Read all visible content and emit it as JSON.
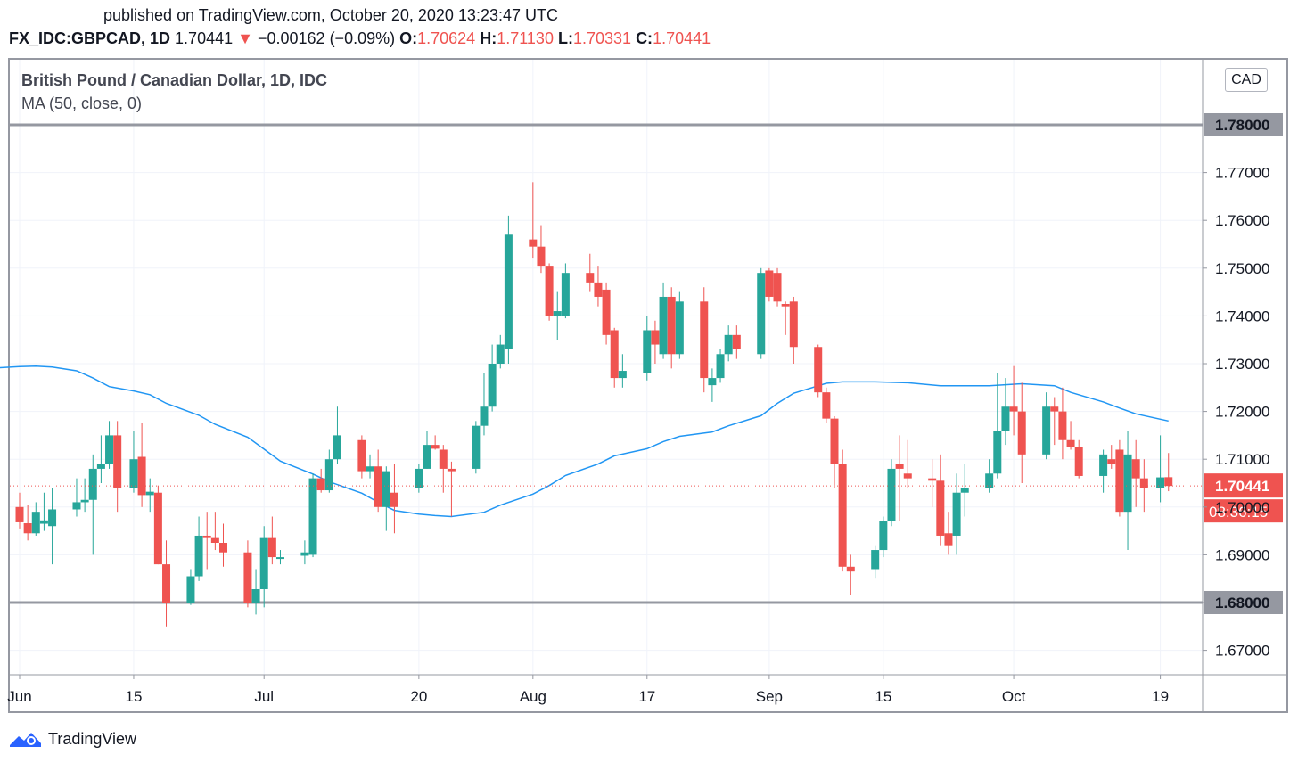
{
  "header": {
    "published": "published on TradingView.com, October 20, 2020 13:23:47 UTC",
    "symbol": "FX_IDC:GBPCAD, 1D",
    "last": "1.70441",
    "change": "−0.00162 (−0.09%)",
    "o_label": "O:",
    "o": "1.70624",
    "h_label": "H:",
    "h": "1.71130",
    "l_label": "L:",
    "l": "1.70331",
    "c_label": "C:",
    "c": "1.70441"
  },
  "legend": {
    "title": "British Pound / Canadian Dollar, 1D, IDC",
    "ma": "MA (50, close, 0)"
  },
  "currency": "CAD",
  "footer": {
    "brand": "TradingView"
  },
  "colors": {
    "up": "#26a69a",
    "down": "#ef5350",
    "ma": "#2196f3",
    "level": "#9598a1",
    "grid": "#f0f3fa",
    "text": "#131722"
  },
  "chart_data": {
    "type": "candlestick",
    "ylim": [
      1.665,
      1.785
    ],
    "y_ticks": [
      "1.67000",
      "1.68000",
      "1.69000",
      "1.70000",
      "1.71000",
      "1.72000",
      "1.73000",
      "1.74000",
      "1.75000",
      "1.76000",
      "1.77000"
    ],
    "x_ticks": [
      {
        "label": "Jun",
        "date": "2020-06-01"
      },
      {
        "label": "15",
        "date": "2020-06-15"
      },
      {
        "label": "Jul",
        "date": "2020-07-01"
      },
      {
        "label": "20",
        "date": "2020-07-20"
      },
      {
        "label": "Aug",
        "date": "2020-08-03"
      },
      {
        "label": "17",
        "date": "2020-08-17"
      },
      {
        "label": "Sep",
        "date": "2020-09-01"
      },
      {
        "label": "15",
        "date": "2020-09-15"
      },
      {
        "label": "Oct",
        "date": "2020-10-01"
      },
      {
        "label": "19",
        "date": "2020-10-19"
      }
    ],
    "horizontal_levels": [
      {
        "value": 1.78,
        "label": "1.78000"
      },
      {
        "value": 1.68,
        "label": "1.68000"
      }
    ],
    "last_price": {
      "value": 1.70441,
      "label": "1.70441",
      "countdown": "08:36:15"
    },
    "candles": [
      {
        "date": "2020-06-01",
        "o": 1.7,
        "h": 1.703,
        "l": 1.6955,
        "c": 1.6968
      },
      {
        "date": "2020-06-02",
        "o": 1.6966,
        "h": 1.7005,
        "l": 1.693,
        "c": 1.6945
      },
      {
        "date": "2020-06-03",
        "o": 1.6945,
        "h": 1.701,
        "l": 1.694,
        "c": 1.699
      },
      {
        "date": "2020-06-04",
        "o": 1.6965,
        "h": 1.703,
        "l": 1.695,
        "c": 1.6972
      },
      {
        "date": "2020-06-05",
        "o": 1.696,
        "h": 1.704,
        "l": 1.688,
        "c": 1.6995
      },
      {
        "date": "2020-06-08",
        "o": 1.6995,
        "h": 1.706,
        "l": 1.698,
        "c": 1.701
      },
      {
        "date": "2020-06-09",
        "o": 1.701,
        "h": 1.706,
        "l": 1.699,
        "c": 1.7015
      },
      {
        "date": "2020-06-10",
        "o": 1.7015,
        "h": 1.711,
        "l": 1.69,
        "c": 1.708
      },
      {
        "date": "2020-06-11",
        "o": 1.708,
        "h": 1.715,
        "l": 1.705,
        "c": 1.709
      },
      {
        "date": "2020-06-12",
        "o": 1.709,
        "h": 1.718,
        "l": 1.708,
        "c": 1.715
      },
      {
        "date": "2020-06-13",
        "o": 1.715,
        "h": 1.718,
        "l": 1.699,
        "c": 1.704
      },
      {
        "date": "2020-06-15",
        "o": 1.704,
        "h": 1.716,
        "l": 1.703,
        "c": 1.71
      },
      {
        "date": "2020-06-16",
        "o": 1.7105,
        "h": 1.7175,
        "l": 1.7,
        "c": 1.7025
      },
      {
        "date": "2020-06-17",
        "o": 1.7025,
        "h": 1.706,
        "l": 1.699,
        "c": 1.7032
      },
      {
        "date": "2020-06-18",
        "o": 1.703,
        "h": 1.7045,
        "l": 1.688,
        "c": 1.688
      },
      {
        "date": "2020-06-19",
        "o": 1.688,
        "h": 1.693,
        "l": 1.675,
        "c": 1.68
      },
      {
        "date": "2020-06-22",
        "o": 1.68,
        "h": 1.687,
        "l": 1.6795,
        "c": 1.6855
      },
      {
        "date": "2020-06-23",
        "o": 1.6855,
        "h": 1.698,
        "l": 1.6845,
        "c": 1.694
      },
      {
        "date": "2020-06-24",
        "o": 1.694,
        "h": 1.699,
        "l": 1.687,
        "c": 1.6935
      },
      {
        "date": "2020-06-25",
        "o": 1.6935,
        "h": 1.699,
        "l": 1.691,
        "c": 1.6925
      },
      {
        "date": "2020-06-26",
        "o": 1.6925,
        "h": 1.6965,
        "l": 1.6875,
        "c": 1.6905
      },
      {
        "date": "2020-06-29",
        "o": 1.6905,
        "h": 1.693,
        "l": 1.679,
        "c": 1.68
      },
      {
        "date": "2020-06-30",
        "o": 1.68,
        "h": 1.687,
        "l": 1.6775,
        "c": 1.6828
      },
      {
        "date": "2020-07-01",
        "o": 1.6828,
        "h": 1.696,
        "l": 1.679,
        "c": 1.6935
      },
      {
        "date": "2020-07-02",
        "o": 1.6935,
        "h": 1.698,
        "l": 1.688,
        "c": 1.6895
      },
      {
        "date": "2020-07-03",
        "o": 1.6895,
        "h": 1.691,
        "l": 1.688,
        "c": 1.6895
      },
      {
        "date": "2020-07-06",
        "o": 1.6898,
        "h": 1.693,
        "l": 1.688,
        "c": 1.6905
      },
      {
        "date": "2020-07-07",
        "o": 1.69,
        "h": 1.707,
        "l": 1.6895,
        "c": 1.706
      },
      {
        "date": "2020-07-08",
        "o": 1.706,
        "h": 1.708,
        "l": 1.703,
        "c": 1.7035
      },
      {
        "date": "2020-07-09",
        "o": 1.7035,
        "h": 1.712,
        "l": 1.703,
        "c": 1.71
      },
      {
        "date": "2020-07-10",
        "o": 1.71,
        "h": 1.721,
        "l": 1.709,
        "c": 1.715
      },
      {
        "date": "2020-07-13",
        "o": 1.714,
        "h": 1.715,
        "l": 1.706,
        "c": 1.7075
      },
      {
        "date": "2020-07-14",
        "o": 1.7075,
        "h": 1.711,
        "l": 1.706,
        "c": 1.7085
      },
      {
        "date": "2020-07-15",
        "o": 1.7085,
        "h": 1.712,
        "l": 1.699,
        "c": 1.7
      },
      {
        "date": "2020-07-16",
        "o": 1.7,
        "h": 1.7085,
        "l": 1.695,
        "c": 1.7075
      },
      {
        "date": "2020-07-17",
        "o": 1.703,
        "h": 1.709,
        "l": 1.6945,
        "c": 1.7
      },
      {
        "date": "2020-07-20",
        "o": 1.704,
        "h": 1.709,
        "l": 1.703,
        "c": 1.708
      },
      {
        "date": "2020-07-21",
        "o": 1.708,
        "h": 1.716,
        "l": 1.708,
        "c": 1.713
      },
      {
        "date": "2020-07-22",
        "o": 1.713,
        "h": 1.715,
        "l": 1.712,
        "c": 1.7122
      },
      {
        "date": "2020-07-23",
        "o": 1.712,
        "h": 1.713,
        "l": 1.703,
        "c": 1.708
      },
      {
        "date": "2020-07-24",
        "o": 1.708,
        "h": 1.7095,
        "l": 1.698,
        "c": 1.7075
      },
      {
        "date": "2020-07-27",
        "o": 1.708,
        "h": 1.718,
        "l": 1.707,
        "c": 1.717
      },
      {
        "date": "2020-07-28",
        "o": 1.717,
        "h": 1.728,
        "l": 1.715,
        "c": 1.721
      },
      {
        "date": "2020-07-29",
        "o": 1.721,
        "h": 1.734,
        "l": 1.72,
        "c": 1.73
      },
      {
        "date": "2020-07-30",
        "o": 1.73,
        "h": 1.736,
        "l": 1.729,
        "c": 1.734
      },
      {
        "date": "2020-07-31",
        "o": 1.733,
        "h": 1.761,
        "l": 1.73,
        "c": 1.757
      },
      {
        "date": "2020-08-03",
        "o": 1.756,
        "h": 1.768,
        "l": 1.752,
        "c": 1.7545
      },
      {
        "date": "2020-08-04",
        "o": 1.7545,
        "h": 1.759,
        "l": 1.749,
        "c": 1.7505
      },
      {
        "date": "2020-08-05",
        "o": 1.7505,
        "h": 1.751,
        "l": 1.739,
        "c": 1.74
      },
      {
        "date": "2020-08-06",
        "o": 1.74,
        "h": 1.745,
        "l": 1.735,
        "c": 1.741
      },
      {
        "date": "2020-08-07",
        "o": 1.74,
        "h": 1.751,
        "l": 1.7395,
        "c": 1.749
      },
      {
        "date": "2020-08-10",
        "o": 1.749,
        "h": 1.753,
        "l": 1.745,
        "c": 1.747
      },
      {
        "date": "2020-08-11",
        "o": 1.747,
        "h": 1.7505,
        "l": 1.742,
        "c": 1.744
      },
      {
        "date": "2020-08-12",
        "o": 1.7455,
        "h": 1.747,
        "l": 1.734,
        "c": 1.736
      },
      {
        "date": "2020-08-13",
        "o": 1.737,
        "h": 1.7375,
        "l": 1.725,
        "c": 1.727
      },
      {
        "date": "2020-08-14",
        "o": 1.727,
        "h": 1.732,
        "l": 1.725,
        "c": 1.7285
      },
      {
        "date": "2020-08-17",
        "o": 1.728,
        "h": 1.74,
        "l": 1.7265,
        "c": 1.737
      },
      {
        "date": "2020-08-18",
        "o": 1.737,
        "h": 1.739,
        "l": 1.73,
        "c": 1.734
      },
      {
        "date": "2020-08-19",
        "o": 1.732,
        "h": 1.747,
        "l": 1.731,
        "c": 1.744
      },
      {
        "date": "2020-08-20",
        "o": 1.744,
        "h": 1.746,
        "l": 1.729,
        "c": 1.732
      },
      {
        "date": "2020-08-21",
        "o": 1.732,
        "h": 1.745,
        "l": 1.731,
        "c": 1.743
      },
      {
        "date": "2020-08-24",
        "o": 1.743,
        "h": 1.746,
        "l": 1.724,
        "c": 1.727
      },
      {
        "date": "2020-08-25",
        "o": 1.7255,
        "h": 1.729,
        "l": 1.722,
        "c": 1.727
      },
      {
        "date": "2020-08-26",
        "o": 1.727,
        "h": 1.733,
        "l": 1.726,
        "c": 1.732
      },
      {
        "date": "2020-08-27",
        "o": 1.732,
        "h": 1.738,
        "l": 1.7305,
        "c": 1.736
      },
      {
        "date": "2020-08-28",
        "o": 1.736,
        "h": 1.738,
        "l": 1.731,
        "c": 1.733
      },
      {
        "date": "2020-08-31",
        "o": 1.732,
        "h": 1.75,
        "l": 1.731,
        "c": 1.749
      },
      {
        "date": "2020-09-01",
        "o": 1.7495,
        "h": 1.75,
        "l": 1.743,
        "c": 1.744
      },
      {
        "date": "2020-09-02",
        "o": 1.749,
        "h": 1.75,
        "l": 1.742,
        "c": 1.743
      },
      {
        "date": "2020-09-03",
        "o": 1.7425,
        "h": 1.743,
        "l": 1.736,
        "c": 1.742
      },
      {
        "date": "2020-09-04",
        "o": 1.743,
        "h": 1.744,
        "l": 1.73,
        "c": 1.7335
      },
      {
        "date": "2020-09-07",
        "o": 1.7335,
        "h": 1.734,
        "l": 1.723,
        "c": 1.724
      },
      {
        "date": "2020-09-08",
        "o": 1.724,
        "h": 1.725,
        "l": 1.7175,
        "c": 1.7185
      },
      {
        "date": "2020-09-09",
        "o": 1.7185,
        "h": 1.719,
        "l": 1.704,
        "c": 1.709
      },
      {
        "date": "2020-09-10",
        "o": 1.709,
        "h": 1.712,
        "l": 1.6865,
        "c": 1.6875
      },
      {
        "date": "2020-09-11",
        "o": 1.6875,
        "h": 1.69,
        "l": 1.6815,
        "c": 1.6865
      },
      {
        "date": "2020-09-14",
        "o": 1.687,
        "h": 1.692,
        "l": 1.685,
        "c": 1.691
      },
      {
        "date": "2020-09-15",
        "o": 1.691,
        "h": 1.698,
        "l": 1.6895,
        "c": 1.697
      },
      {
        "date": "2020-09-16",
        "o": 1.697,
        "h": 1.71,
        "l": 1.696,
        "c": 1.708
      },
      {
        "date": "2020-09-17",
        "o": 1.709,
        "h": 1.715,
        "l": 1.697,
        "c": 1.708
      },
      {
        "date": "2020-09-18",
        "o": 1.707,
        "h": 1.714,
        "l": 1.704,
        "c": 1.706
      },
      {
        "date": "2020-09-21",
        "o": 1.706,
        "h": 1.71,
        "l": 1.7,
        "c": 1.7055
      },
      {
        "date": "2020-09-22",
        "o": 1.7055,
        "h": 1.711,
        "l": 1.692,
        "c": 1.694
      },
      {
        "date": "2020-09-23",
        "o": 1.6945,
        "h": 1.699,
        "l": 1.69,
        "c": 1.692
      },
      {
        "date": "2020-09-24",
        "o": 1.694,
        "h": 1.707,
        "l": 1.69,
        "c": 1.703
      },
      {
        "date": "2020-09-25",
        "o": 1.703,
        "h": 1.709,
        "l": 1.698,
        "c": 1.704
      },
      {
        "date": "2020-09-28",
        "o": 1.704,
        "h": 1.71,
        "l": 1.703,
        "c": 1.707
      },
      {
        "date": "2020-09-29",
        "o": 1.707,
        "h": 1.728,
        "l": 1.706,
        "c": 1.716
      },
      {
        "date": "2020-09-30",
        "o": 1.716,
        "h": 1.727,
        "l": 1.713,
        "c": 1.721
      },
      {
        "date": "2020-10-01",
        "o": 1.721,
        "h": 1.7295,
        "l": 1.715,
        "c": 1.72
      },
      {
        "date": "2020-10-02",
        "o": 1.72,
        "h": 1.726,
        "l": 1.705,
        "c": 1.711
      },
      {
        "date": "2020-10-05",
        "o": 1.711,
        "h": 1.724,
        "l": 1.71,
        "c": 1.721
      },
      {
        "date": "2020-10-06",
        "o": 1.721,
        "h": 1.723,
        "l": 1.713,
        "c": 1.72
      },
      {
        "date": "2020-10-07",
        "o": 1.72,
        "h": 1.725,
        "l": 1.71,
        "c": 1.714
      },
      {
        "date": "2020-10-08",
        "o": 1.714,
        "h": 1.718,
        "l": 1.712,
        "c": 1.7125
      },
      {
        "date": "2020-10-09",
        "o": 1.7125,
        "h": 1.714,
        "l": 1.706,
        "c": 1.7065
      },
      {
        "date": "2020-10-12",
        "o": 1.7065,
        "h": 1.712,
        "l": 1.703,
        "c": 1.711
      },
      {
        "date": "2020-10-13",
        "o": 1.71,
        "h": 1.713,
        "l": 1.708,
        "c": 1.709
      },
      {
        "date": "2020-10-14",
        "o": 1.712,
        "h": 1.714,
        "l": 1.698,
        "c": 1.699
      },
      {
        "date": "2020-10-15",
        "o": 1.699,
        "h": 1.716,
        "l": 1.691,
        "c": 1.711
      },
      {
        "date": "2020-10-16",
        "o": 1.71,
        "h": 1.714,
        "l": 1.7,
        "c": 1.706
      },
      {
        "date": "2020-10-17",
        "o": 1.706,
        "h": 1.71,
        "l": 1.699,
        "c": 1.704
      },
      {
        "date": "2020-10-19",
        "o": 1.704,
        "h": 1.715,
        "l": 1.701,
        "c": 1.7062
      },
      {
        "date": "2020-10-20",
        "o": 1.70624,
        "h": 1.7113,
        "l": 1.70331,
        "c": 1.70441
      }
    ],
    "ma_series": {
      "name": "MA (50, close, 0)",
      "points": [
        {
          "date": "2020-05-29",
          "v": 1.7291
        },
        {
          "date": "2020-06-01",
          "v": 1.7294
        },
        {
          "date": "2020-06-03",
          "v": 1.7295
        },
        {
          "date": "2020-06-05",
          "v": 1.7293
        },
        {
          "date": "2020-06-08",
          "v": 1.7285
        },
        {
          "date": "2020-06-10",
          "v": 1.727
        },
        {
          "date": "2020-06-12",
          "v": 1.7252
        },
        {
          "date": "2020-06-15",
          "v": 1.7243
        },
        {
          "date": "2020-06-17",
          "v": 1.7235
        },
        {
          "date": "2020-06-19",
          "v": 1.7217
        },
        {
          "date": "2020-06-23",
          "v": 1.7192
        },
        {
          "date": "2020-06-25",
          "v": 1.7173
        },
        {
          "date": "2020-06-29",
          "v": 1.7146
        },
        {
          "date": "2020-07-01",
          "v": 1.7121
        },
        {
          "date": "2020-07-03",
          "v": 1.7096
        },
        {
          "date": "2020-07-07",
          "v": 1.7069
        },
        {
          "date": "2020-07-09",
          "v": 1.7053
        },
        {
          "date": "2020-07-13",
          "v": 1.7029
        },
        {
          "date": "2020-07-15",
          "v": 1.701
        },
        {
          "date": "2020-07-17",
          "v": 1.6993
        },
        {
          "date": "2020-07-20",
          "v": 1.6985
        },
        {
          "date": "2020-07-22",
          "v": 1.6982
        },
        {
          "date": "2020-07-24",
          "v": 1.698
        },
        {
          "date": "2020-07-28",
          "v": 1.6989
        },
        {
          "date": "2020-07-30",
          "v": 1.7004
        },
        {
          "date": "2020-08-03",
          "v": 1.7027
        },
        {
          "date": "2020-08-05",
          "v": 1.7045
        },
        {
          "date": "2020-08-07",
          "v": 1.7066
        },
        {
          "date": "2020-08-11",
          "v": 1.709
        },
        {
          "date": "2020-08-13",
          "v": 1.7107
        },
        {
          "date": "2020-08-17",
          "v": 1.7122
        },
        {
          "date": "2020-08-19",
          "v": 1.7137
        },
        {
          "date": "2020-08-21",
          "v": 1.7148
        },
        {
          "date": "2020-08-25",
          "v": 1.7157
        },
        {
          "date": "2020-08-27",
          "v": 1.717
        },
        {
          "date": "2020-08-31",
          "v": 1.7191
        },
        {
          "date": "2020-09-02",
          "v": 1.7217
        },
        {
          "date": "2020-09-04",
          "v": 1.7238
        },
        {
          "date": "2020-09-08",
          "v": 1.7259
        },
        {
          "date": "2020-09-10",
          "v": 1.7262
        },
        {
          "date": "2020-09-14",
          "v": 1.7262
        },
        {
          "date": "2020-09-18",
          "v": 1.726
        },
        {
          "date": "2020-09-22",
          "v": 1.7254
        },
        {
          "date": "2020-09-28",
          "v": 1.7254
        },
        {
          "date": "2020-10-02",
          "v": 1.7258
        },
        {
          "date": "2020-10-06",
          "v": 1.7254
        },
        {
          "date": "2020-10-08",
          "v": 1.724
        },
        {
          "date": "2020-10-12",
          "v": 1.722
        },
        {
          "date": "2020-10-14",
          "v": 1.7207
        },
        {
          "date": "2020-10-16",
          "v": 1.7195
        },
        {
          "date": "2020-10-20",
          "v": 1.718
        }
      ]
    }
  }
}
